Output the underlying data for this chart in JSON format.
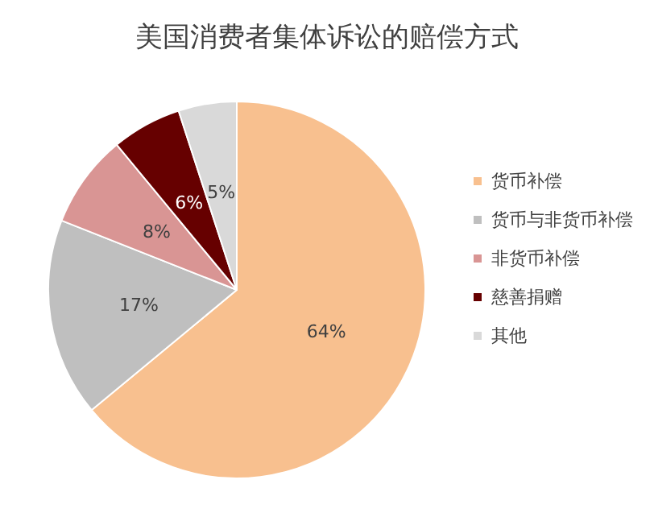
{
  "chart_data": {
    "type": "pie",
    "title": "美国消费者集体诉讼的赔偿方式",
    "categories": [
      "货币补偿",
      "货币与非货币补偿",
      "非货币补偿",
      "慈善捐赠",
      "其他"
    ],
    "values": [
      64,
      17,
      8,
      6,
      5
    ],
    "colors": [
      "#f8c08f",
      "#bfbfbf",
      "#d99594",
      "#660000",
      "#d9d9d9"
    ],
    "value_labels": [
      "64%",
      "17%",
      "8%",
      "6%",
      "5%"
    ],
    "legend": "right"
  }
}
